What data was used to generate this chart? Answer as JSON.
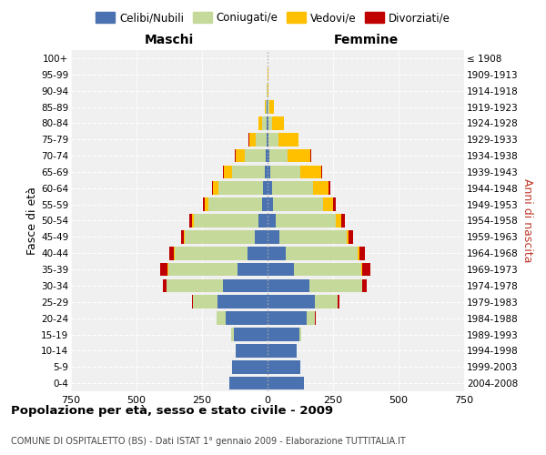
{
  "age_groups": [
    "0-4",
    "5-9",
    "10-14",
    "15-19",
    "20-24",
    "25-29",
    "30-34",
    "35-39",
    "40-44",
    "45-49",
    "50-54",
    "55-59",
    "60-64",
    "65-69",
    "70-74",
    "75-79",
    "80-84",
    "85-89",
    "90-94",
    "95-99",
    "100+"
  ],
  "year_labels": [
    "2004-2008",
    "1999-2003",
    "1994-1998",
    "1989-1993",
    "1984-1988",
    "1979-1983",
    "1974-1978",
    "1969-1973",
    "1964-1968",
    "1959-1963",
    "1954-1958",
    "1949-1953",
    "1944-1948",
    "1939-1943",
    "1934-1938",
    "1929-1933",
    "1924-1928",
    "1919-1923",
    "1914-1918",
    "1909-1913",
    "≤ 1908"
  ],
  "male_celibi": [
    145,
    135,
    120,
    130,
    160,
    190,
    170,
    115,
    75,
    50,
    35,
    22,
    18,
    12,
    8,
    4,
    3,
    2,
    1,
    0,
    0
  ],
  "male_coniugati": [
    0,
    0,
    2,
    8,
    35,
    95,
    215,
    265,
    280,
    265,
    245,
    205,
    170,
    125,
    78,
    42,
    18,
    6,
    1,
    0,
    0
  ],
  "male_vedovi": [
    0,
    0,
    0,
    0,
    0,
    0,
    1,
    1,
    2,
    4,
    8,
    12,
    20,
    30,
    35,
    25,
    12,
    4,
    1,
    0,
    0
  ],
  "male_divorziati": [
    0,
    0,
    0,
    0,
    1,
    4,
    13,
    28,
    18,
    11,
    9,
    7,
    5,
    4,
    3,
    2,
    1,
    0,
    0,
    0,
    0
  ],
  "female_celibi": [
    138,
    125,
    110,
    120,
    150,
    180,
    160,
    100,
    70,
    46,
    32,
    20,
    16,
    10,
    6,
    4,
    2,
    1,
    0,
    0,
    0
  ],
  "female_coniugati": [
    0,
    0,
    2,
    7,
    32,
    88,
    200,
    258,
    275,
    255,
    230,
    192,
    158,
    115,
    72,
    38,
    16,
    6,
    1,
    0,
    0
  ],
  "female_vedovi": [
    0,
    0,
    0,
    0,
    0,
    0,
    1,
    2,
    4,
    9,
    18,
    37,
    60,
    80,
    85,
    75,
    45,
    18,
    4,
    2,
    1
  ],
  "female_divorziati": [
    0,
    0,
    0,
    0,
    2,
    5,
    16,
    32,
    23,
    16,
    14,
    11,
    7,
    4,
    3,
    2,
    1,
    0,
    0,
    0,
    0
  ],
  "color_celibi": "#4a72b0",
  "color_coniugati": "#c5d99b",
  "color_vedovi": "#ffc000",
  "color_divorziati": "#c00000",
  "xlim": 750,
  "title": "Popolazione per età, sesso e stato civile - 2009",
  "subtitle": "COMUNE DI OSPITALETTO (BS) - Dati ISTAT 1° gennaio 2009 - Elaborazione TUTTITALIA.IT",
  "ylabel_left": "Fasce di età",
  "ylabel_right": "Anni di nascita",
  "xlabel_maschi": "Maschi",
  "xlabel_femmine": "Femmine",
  "bg_color": "#f0f0f0"
}
